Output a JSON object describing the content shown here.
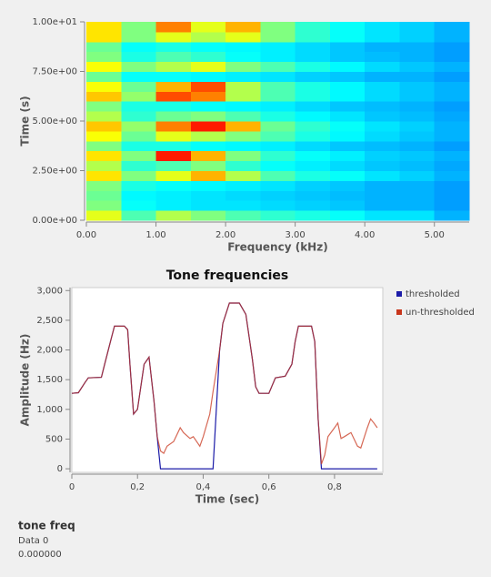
{
  "chart_data": [
    {
      "type": "heatmap",
      "xlabel": "Frequency (kHz)",
      "ylabel": "Time (s)",
      "xbins": [
        0,
        0.5,
        1,
        1.5,
        2,
        2.5,
        3,
        3.5,
        4,
        4.5,
        5,
        5.5
      ],
      "ybins": [
        0,
        0.5,
        1,
        1.5,
        2,
        2.5,
        3,
        3.5,
        4,
        4.5,
        5,
        5.5,
        6,
        6.5,
        7,
        7.5,
        8,
        8.5,
        9,
        9.5,
        10
      ],
      "matrix": [
        [
          0.6,
          0.45,
          0.55,
          0.5,
          0.45,
          0.42,
          0.4,
          0.38,
          0.35,
          0.35,
          0.3
        ],
        [
          0.5,
          0.38,
          0.36,
          0.35,
          0.35,
          0.34,
          0.33,
          0.32,
          0.3,
          0.3,
          0.28
        ],
        [
          0.48,
          0.37,
          0.36,
          0.35,
          0.34,
          0.33,
          0.32,
          0.31,
          0.3,
          0.3,
          0.28
        ],
        [
          0.5,
          0.4,
          0.38,
          0.37,
          0.36,
          0.35,
          0.33,
          0.32,
          0.3,
          0.3,
          0.28
        ],
        [
          0.65,
          0.5,
          0.6,
          0.7,
          0.55,
          0.45,
          0.4,
          0.38,
          0.35,
          0.33,
          0.3
        ],
        [
          0.55,
          0.42,
          0.45,
          0.5,
          0.42,
          0.38,
          0.36,
          0.34,
          0.32,
          0.31,
          0.29
        ],
        [
          0.65,
          0.5,
          0.85,
          0.7,
          0.5,
          0.42,
          0.38,
          0.36,
          0.33,
          0.32,
          0.3
        ],
        [
          0.5,
          0.4,
          0.4,
          0.38,
          0.37,
          0.36,
          0.34,
          0.32,
          0.31,
          0.3,
          0.28
        ],
        [
          0.62,
          0.48,
          0.6,
          0.55,
          0.5,
          0.45,
          0.4,
          0.37,
          0.34,
          0.32,
          0.3
        ],
        [
          0.68,
          0.52,
          0.75,
          0.85,
          0.7,
          0.48,
          0.42,
          0.38,
          0.35,
          0.33,
          0.3
        ],
        [
          0.55,
          0.42,
          0.48,
          0.5,
          0.45,
          0.4,
          0.37,
          0.35,
          0.32,
          0.31,
          0.29
        ],
        [
          0.5,
          0.4,
          0.4,
          0.38,
          0.37,
          0.36,
          0.34,
          0.32,
          0.31,
          0.3,
          0.28
        ],
        [
          0.68,
          0.52,
          0.8,
          0.75,
          0.55,
          0.45,
          0.4,
          0.37,
          0.34,
          0.32,
          0.3
        ],
        [
          0.62,
          0.48,
          0.7,
          0.8,
          0.55,
          0.45,
          0.4,
          0.37,
          0.34,
          0.32,
          0.3
        ],
        [
          0.48,
          0.38,
          0.38,
          0.37,
          0.36,
          0.35,
          0.33,
          0.32,
          0.3,
          0.3,
          0.28
        ],
        [
          0.62,
          0.5,
          0.55,
          0.6,
          0.5,
          0.45,
          0.4,
          0.37,
          0.34,
          0.32,
          0.3
        ],
        [
          0.5,
          0.4,
          0.45,
          0.42,
          0.38,
          0.36,
          0.34,
          0.32,
          0.31,
          0.3,
          0.28
        ],
        [
          0.48,
          0.38,
          0.4,
          0.38,
          0.37,
          0.36,
          0.34,
          0.32,
          0.3,
          0.3,
          0.28
        ],
        [
          0.65,
          0.5,
          0.6,
          0.55,
          0.6,
          0.5,
          0.42,
          0.38,
          0.35,
          0.33,
          0.3
        ],
        [
          0.65,
          0.5,
          0.75,
          0.6,
          0.7,
          0.5,
          0.42,
          0.38,
          0.35,
          0.33,
          0.3
        ]
      ],
      "xlim": [
        0,
        5.5
      ],
      "ylim": [
        0,
        10
      ],
      "xticks": [
        {
          "value": 0,
          "label": "0.00"
        },
        {
          "value": 1,
          "label": "1.00"
        },
        {
          "value": 2,
          "label": "2.00"
        },
        {
          "value": 3,
          "label": "3.00"
        },
        {
          "value": 4,
          "label": "4.00"
        },
        {
          "value": 5,
          "label": "5.00"
        }
      ],
      "yticks": [
        {
          "value": 0,
          "label": "0.00e+00"
        },
        {
          "value": 2.5,
          "label": "2.50e+00"
        },
        {
          "value": 5,
          "label": "5.00e+00"
        },
        {
          "value": 7.5,
          "label": "7.50e+00"
        },
        {
          "value": 10,
          "label": "1.00e+01"
        }
      ]
    },
    {
      "type": "line",
      "title": "Tone frequencies",
      "xlabel": "Time (sec)",
      "ylabel": "Amplitude (Hz)",
      "x": [
        0,
        0.02,
        0.04,
        0.05,
        0.09,
        0.1,
        0.12,
        0.13,
        0.16,
        0.17,
        0.177,
        0.188,
        0.2,
        0.22,
        0.23,
        0.235,
        0.25,
        0.26,
        0.27,
        0.28,
        0.29,
        0.31,
        0.33,
        0.34,
        0.36,
        0.37,
        0.39,
        0.4,
        0.42,
        0.43,
        0.45,
        0.46,
        0.48,
        0.51,
        0.53,
        0.55,
        0.56,
        0.57,
        0.6,
        0.62,
        0.65,
        0.67,
        0.68,
        0.69,
        0.73,
        0.74,
        0.75,
        0.76,
        0.77,
        0.78,
        0.8,
        0.81,
        0.82,
        0.83,
        0.85,
        0.87,
        0.88,
        0.9,
        0.91,
        0.92,
        0.93
      ],
      "series": [
        {
          "name": "thresholded",
          "color": "#1c1ca8",
          "values": [
            1270,
            1280,
            1450,
            1530,
            1540,
            1760,
            2190,
            2400,
            2400,
            2340,
            1760,
            920,
            1000,
            1760,
            1840,
            1880,
            1150,
            540,
            0,
            0,
            0,
            0,
            0,
            0,
            0,
            0,
            0,
            0,
            0,
            0,
            1990,
            2450,
            2790,
            2790,
            2600,
            1840,
            1380,
            1270,
            1270,
            1530,
            1560,
            1760,
            2140,
            2400,
            2400,
            2140,
            840,
            0,
            0,
            0,
            0,
            0,
            0,
            0,
            0,
            0,
            0,
            0,
            0,
            0,
            0
          ]
        },
        {
          "name": "un-thresholded",
          "color": "#c8361c",
          "values": [
            1270,
            1280,
            1450,
            1530,
            1540,
            1760,
            2190,
            2400,
            2400,
            2340,
            1760,
            920,
            1000,
            1760,
            1840,
            1880,
            1150,
            540,
            300,
            260,
            380,
            460,
            690,
            610,
            510,
            540,
            380,
            540,
            920,
            1300,
            1990,
            2450,
            2790,
            2790,
            2600,
            1840,
            1380,
            1270,
            1270,
            1530,
            1560,
            1760,
            2140,
            2400,
            2400,
            2140,
            840,
            80,
            230,
            540,
            690,
            770,
            510,
            540,
            610,
            380,
            350,
            690,
            840,
            770,
            690
          ]
        }
      ],
      "xlim": [
        0,
        0.947
      ],
      "ylim": [
        -60,
        3050
      ],
      "xticks": [
        0,
        {
          "value": 0.2,
          "label": "0,2"
        },
        {
          "value": 0.4,
          "label": "0,4"
        },
        {
          "value": 0.6,
          "label": "0,6"
        },
        {
          "value": 0.8,
          "label": "0,8"
        }
      ],
      "yticks": [
        0,
        500,
        {
          "value": 1000,
          "label": "1,000"
        },
        {
          "value": 1500,
          "label": "1,500"
        },
        {
          "value": 2000,
          "label": "2,000"
        },
        {
          "value": 2500,
          "label": "2,500"
        },
        {
          "value": 3000,
          "label": "3,000"
        }
      ],
      "legend": "right"
    }
  ],
  "readout": {
    "title": "tone freq",
    "label": "Data 0",
    "value": "0.000000"
  }
}
